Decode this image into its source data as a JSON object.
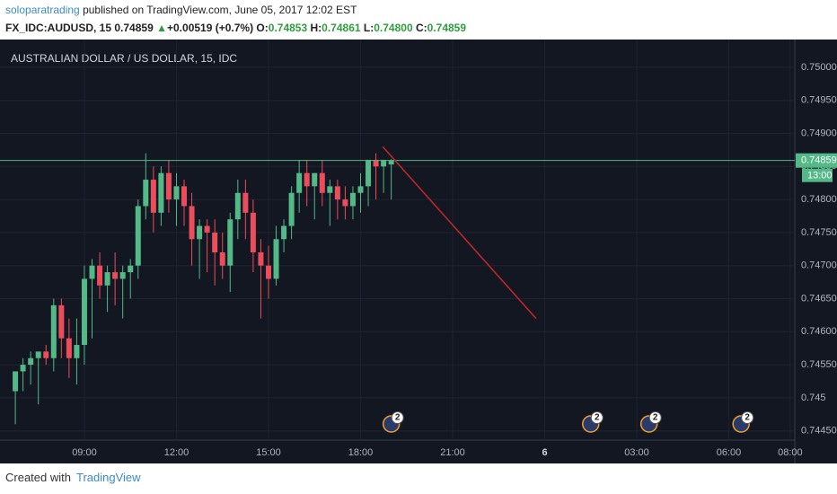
{
  "header": {
    "author": "soloparatrading",
    "published": "published on TradingView.com, June 05, 2017 12:02 EST",
    "symbol": "FX_IDC:AUDUSD, 15",
    "last": "0.74859",
    "change": "+0.00519 (+0.7%)",
    "o_label": "O:",
    "o": "0.74853",
    "h_label": "H:",
    "h": "0.74861",
    "l_label": "L:",
    "l": "0.74800",
    "c_label": "C:",
    "c": "0.74859"
  },
  "chart_data": {
    "type": "candlestick",
    "title": "AUSTRALIAN DOLLAR / US DOLLAR, 15, IDC",
    "up_color": "#53b987",
    "down_color": "#eb4d5c",
    "grid": true,
    "x": [
      6.75,
      7,
      7.25,
      7.5,
      7.75,
      8,
      8.25,
      8.5,
      8.75,
      9,
      9.25,
      9.5,
      9.75,
      10,
      10.25,
      10.5,
      10.75,
      11,
      11.25,
      11.5,
      11.75,
      12,
      12.25,
      12.5,
      12.75,
      13,
      13.25,
      13.5,
      13.75,
      14,
      14.25,
      14.5,
      14.75,
      15,
      15.25,
      15.5,
      15.75,
      16,
      16.25,
      16.5,
      16.75,
      17,
      17.25,
      17.5,
      17.75,
      18,
      18.25,
      18.5,
      18.75,
      19
    ],
    "open": [
      0.7451,
      0.7454,
      0.7455,
      0.7456,
      0.7457,
      0.7456,
      0.7464,
      0.7459,
      0.7456,
      0.7458,
      0.7468,
      0.747,
      0.7467,
      0.7469,
      0.7468,
      0.7469,
      0.747,
      0.7479,
      0.7483,
      0.7478,
      0.7484,
      0.748,
      0.7482,
      0.7479,
      0.7474,
      0.7476,
      0.7475,
      0.7472,
      0.747,
      0.7477,
      0.7481,
      0.7478,
      0.7472,
      0.747,
      0.7468,
      0.7474,
      0.7476,
      0.7481,
      0.7484,
      0.7482,
      0.7484,
      0.7481,
      0.7482,
      0.748,
      0.7479,
      0.7481,
      0.7482,
      0.7486,
      0.7485,
      0.74853
    ],
    "high": [
      0.7454,
      0.7456,
      0.7457,
      0.7457,
      0.7458,
      0.7465,
      0.7465,
      0.7462,
      0.7462,
      0.747,
      0.7471,
      0.7472,
      0.747,
      0.7472,
      0.747,
      0.7471,
      0.748,
      0.7487,
      0.7485,
      0.7485,
      0.7486,
      0.7484,
      0.7483,
      0.7481,
      0.7477,
      0.7477,
      0.7477,
      0.7475,
      0.7478,
      0.7483,
      0.7483,
      0.748,
      0.7474,
      0.7473,
      0.7476,
      0.7477,
      0.7482,
      0.7486,
      0.7486,
      0.7484,
      0.7486,
      0.7483,
      0.7483,
      0.7482,
      0.7482,
      0.7484,
      0.7486,
      0.7487,
      0.7486,
      0.74861
    ],
    "low": [
      0.7446,
      0.7451,
      0.7452,
      0.7449,
      0.7455,
      0.7454,
      0.7456,
      0.7453,
      0.7452,
      0.7455,
      0.7459,
      0.7465,
      0.7463,
      0.7464,
      0.7462,
      0.7465,
      0.7468,
      0.7477,
      0.7475,
      0.7476,
      0.7478,
      0.7476,
      0.7476,
      0.747,
      0.7468,
      0.7469,
      0.7467,
      0.7468,
      0.7466,
      0.7474,
      0.7474,
      0.7469,
      0.7462,
      0.7465,
      0.7467,
      0.7472,
      0.7474,
      0.7478,
      0.7479,
      0.7477,
      0.7479,
      0.7476,
      0.7477,
      0.7477,
      0.7477,
      0.7478,
      0.7479,
      0.748,
      0.7481,
      0.748
    ],
    "close": [
      0.7454,
      0.7455,
      0.7456,
      0.7457,
      0.7456,
      0.7464,
      0.7459,
      0.7456,
      0.7458,
      0.7468,
      0.747,
      0.7467,
      0.7469,
      0.7468,
      0.7469,
      0.747,
      0.7479,
      0.7483,
      0.7478,
      0.7484,
      0.748,
      0.7482,
      0.7479,
      0.7474,
      0.7476,
      0.7475,
      0.7472,
      0.747,
      0.7477,
      0.7481,
      0.7478,
      0.7472,
      0.747,
      0.7468,
      0.7474,
      0.7476,
      0.7481,
      0.7484,
      0.7482,
      0.7484,
      0.7481,
      0.7482,
      0.748,
      0.7479,
      0.7481,
      0.7482,
      0.7486,
      0.7485,
      0.7486,
      0.74859
    ],
    "xlim": [
      6.25,
      32.15
    ],
    "ylim": [
      0.74436,
      0.75042
    ],
    "xticks": [
      {
        "value": 9,
        "label": "09:00"
      },
      {
        "value": 12,
        "label": "12:00"
      },
      {
        "value": 15,
        "label": "15:00"
      },
      {
        "value": 18,
        "label": "18:00"
      },
      {
        "value": 21,
        "label": "21:00"
      },
      {
        "value": 24,
        "label": "6"
      },
      {
        "value": 27,
        "label": "03:00"
      },
      {
        "value": 30,
        "label": "06:00"
      },
      {
        "value": 32,
        "label": "08:00"
      }
    ],
    "yticks": [
      {
        "value": 0.7445,
        "label": "0.74450"
      },
      0.745,
      {
        "value": 0.7455,
        "label": "0.74550"
      },
      {
        "value": 0.746,
        "label": "0.74600"
      },
      {
        "value": 0.7465,
        "label": "0.74650"
      },
      {
        "value": 0.747,
        "label": "0.74700"
      },
      {
        "value": 0.7475,
        "label": "0.74750"
      },
      {
        "value": 0.748,
        "label": "0.74800"
      },
      {
        "value": 0.7485,
        "label": "0.74850"
      },
      {
        "value": 0.749,
        "label": "0.74900"
      },
      {
        "value": 0.7495,
        "label": "0.74950"
      },
      {
        "value": 0.75,
        "label": "0.75000"
      }
    ],
    "last_price": 0.74859,
    "countdown": "13:00",
    "trend_line": {
      "x": [
        18.72,
        23.72
      ],
      "y": [
        0.7488,
        0.7462
      ],
      "color": "#c62828"
    },
    "events": {
      "x": [
        19,
        25.5,
        27.4,
        30.4
      ],
      "counts": [
        2,
        2,
        2,
        2
      ]
    }
  },
  "footer": {
    "created": "Created with",
    "brand": "TradingView"
  }
}
